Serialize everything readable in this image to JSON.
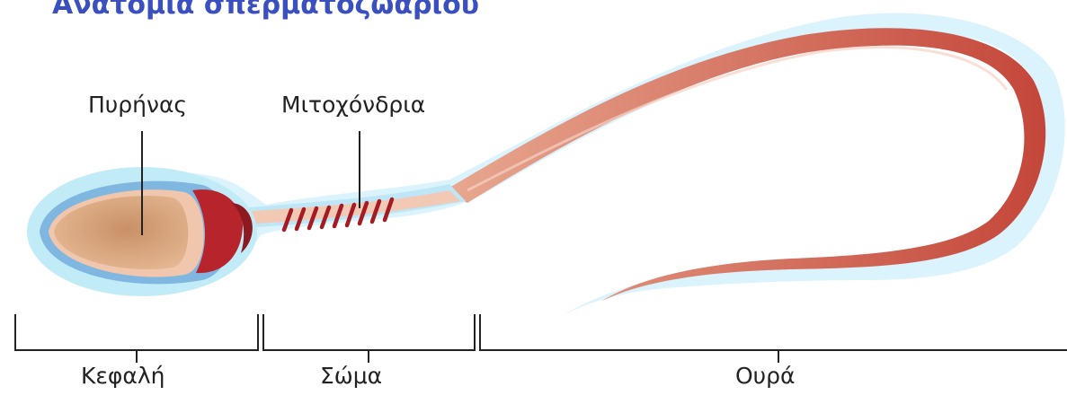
{
  "title": "Ανατομία σπερματοζωαρίου",
  "labels": {
    "nucleus": "Πυρήνας",
    "mitochondria": "Μιτοχόνδρια"
  },
  "sections": {
    "head": "Κεφαλή",
    "body": "Σώμα",
    "tail": "Ουρά"
  },
  "colors": {
    "title": "#3a4fc0",
    "halo": "#cdeefa",
    "membrane": "#7fb7e0",
    "nucleus": "#d9a27a",
    "acrosome_cap": "#b8242c",
    "midpiece": "#f1c9b5",
    "mito_rings": "#a41b22",
    "tail": "#c9503c",
    "lines": "#222222"
  }
}
